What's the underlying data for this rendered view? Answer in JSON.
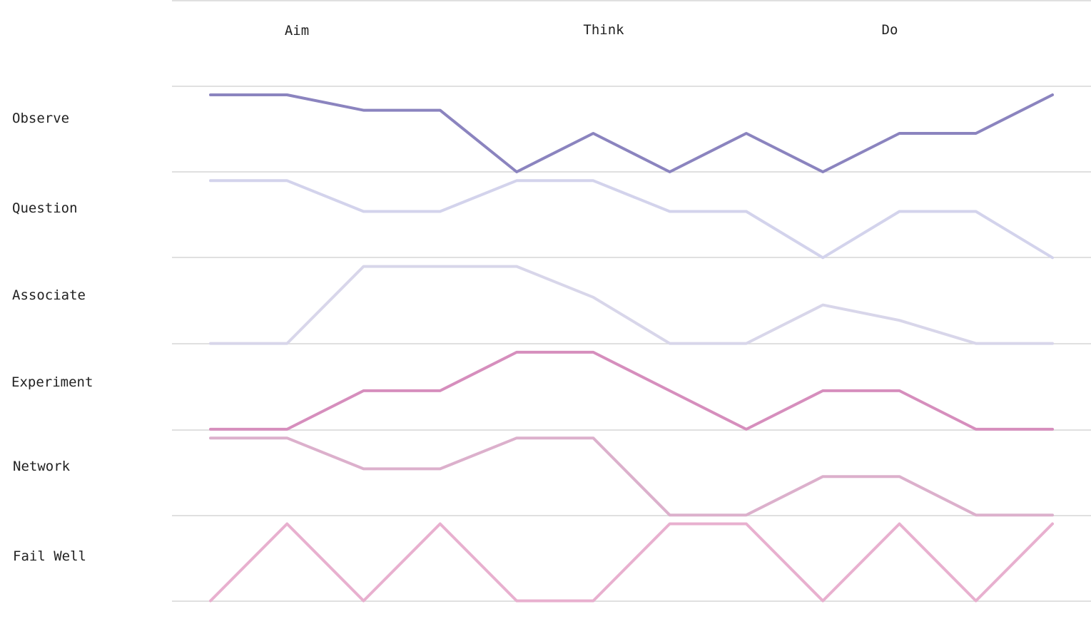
{
  "chart_data": {
    "type": "line",
    "phases": [
      "Aim",
      "Think",
      "Do"
    ],
    "y_range": [
      0,
      2
    ],
    "points_per_series": 12,
    "grid": true,
    "series": [
      {
        "name": "Observe",
        "color": "#8b84bf",
        "values": [
          2,
          2,
          1.6,
          1.6,
          0,
          1,
          0,
          1,
          0,
          1,
          1,
          2
        ]
      },
      {
        "name": "Question",
        "color": "#d3d3ec",
        "values": [
          2,
          2,
          1.2,
          1.2,
          2,
          2,
          1.2,
          1.2,
          0,
          1.2,
          1.2,
          0
        ]
      },
      {
        "name": "Associate",
        "color": "#d8d6ea",
        "values": [
          0,
          0,
          2,
          2,
          2,
          1.2,
          0,
          0,
          1,
          0.6,
          0,
          0
        ]
      },
      {
        "name": "Experiment",
        "color": "#d68ebd",
        "values": [
          0,
          0,
          1,
          1,
          2,
          2,
          1,
          0,
          1,
          1,
          0,
          0
        ]
      },
      {
        "name": "Network",
        "color": "#dcb0cc",
        "values": [
          2,
          2,
          1.2,
          1.2,
          2,
          2,
          0,
          0,
          1,
          1,
          0,
          0
        ]
      },
      {
        "name": "Fail Well",
        "color": "#e8b0cf",
        "values": [
          0,
          2,
          0,
          2,
          0,
          0,
          2,
          2,
          0,
          2,
          0,
          2
        ]
      }
    ]
  }
}
